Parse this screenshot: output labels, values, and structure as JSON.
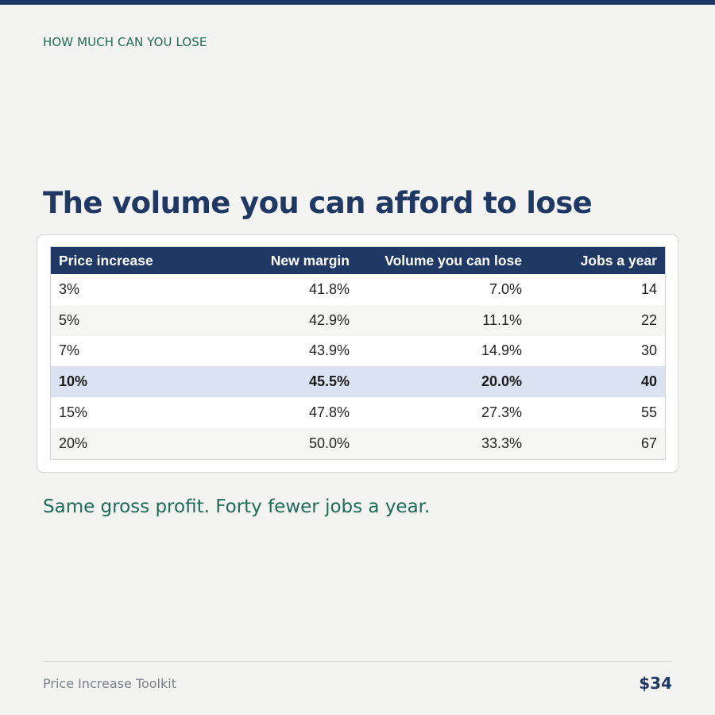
{
  "colors": {
    "navy": "#1f3864",
    "green": "#1e6b57",
    "background": "#f3f4f1",
    "highlight_row": "#dbe3f3"
  },
  "header": {
    "eyebrow": "HOW MUCH CAN YOU LOSE",
    "title": "The volume you can afford to lose"
  },
  "table": {
    "columns": [
      "Price increase",
      "New margin",
      "Volume you can lose",
      "Jobs a year"
    ],
    "rows": [
      [
        "3%",
        "41.8%",
        "7.0%",
        "14"
      ],
      [
        "5%",
        "42.9%",
        "11.1%",
        "22"
      ],
      [
        "7%",
        "43.9%",
        "14.9%",
        "30"
      ],
      [
        "10%",
        "45.5%",
        "20.0%",
        "40"
      ],
      [
        "15%",
        "47.8%",
        "27.3%",
        "55"
      ],
      [
        "20%",
        "50.0%",
        "33.3%",
        "67"
      ]
    ],
    "highlighted_row": "10%"
  },
  "tagline": "Same gross profit. Forty fewer jobs a year.",
  "footer": {
    "left": "Price Increase Toolkit",
    "right": "$34"
  }
}
